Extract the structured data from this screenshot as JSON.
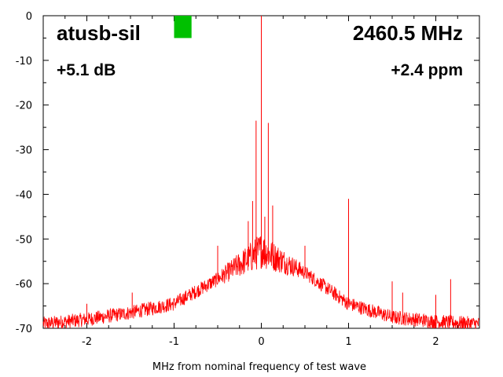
{
  "chart_data": {
    "type": "line",
    "title": "atusb-sil",
    "xlabel": "MHz from nominal frequency of test wave",
    "ylabel": "",
    "xlim": [
      -2.5,
      2.5
    ],
    "ylim": [
      -70,
      0
    ],
    "grid": false,
    "xticks": [
      -2,
      -1,
      0,
      1,
      2
    ],
    "yticks": [
      0,
      -10,
      -20,
      -30,
      -40,
      -50,
      -60,
      -70
    ],
    "xtick_labels": [
      "-2",
      "-1",
      "0",
      "1",
      "2"
    ],
    "ytick_labels": [
      "0",
      "-10",
      "-20",
      "-30",
      "-40",
      "-50",
      "-60",
      "-70"
    ],
    "line_color": "#ff0000",
    "annotations": {
      "device": "atusb-sil",
      "frequency": "2460.5 MHz",
      "power": "+5.1 dB",
      "offset": "+2.4 ppm"
    },
    "indicator": {
      "color": "#00c000",
      "x": [
        -1.0,
        -0.8
      ],
      "y": [
        0,
        -5
      ]
    },
    "envelope": {
      "description": "noise floor rising from about -69 dB at the edges to about -52 dB near 0 MHz",
      "x": [
        -2.5,
        -2.0,
        -1.5,
        -1.0,
        -0.5,
        0.0,
        0.5,
        1.0,
        1.5,
        2.0,
        2.5
      ],
      "y": [
        -69,
        -68,
        -66.5,
        -64.5,
        -59,
        -52.5,
        -57.5,
        -64.5,
        -67.5,
        -68.5,
        -69
      ]
    },
    "spurs": [
      {
        "x": -2.0,
        "y": -64.5
      },
      {
        "x": -1.48,
        "y": -62
      },
      {
        "x": -0.97,
        "y": -64
      },
      {
        "x": -0.5,
        "y": -51.5
      },
      {
        "x": -0.15,
        "y": -46
      },
      {
        "x": -0.1,
        "y": -41.5
      },
      {
        "x": -0.06,
        "y": -23.5
      },
      {
        "x": 0.0,
        "y": 0
      },
      {
        "x": 0.04,
        "y": -45
      },
      {
        "x": 0.08,
        "y": -24
      },
      {
        "x": 0.13,
        "y": -42.5
      },
      {
        "x": 0.5,
        "y": -51.5
      },
      {
        "x": 1.0,
        "y": -41
      },
      {
        "x": 1.5,
        "y": -59.5
      },
      {
        "x": 1.62,
        "y": -62
      },
      {
        "x": 2.0,
        "y": -62.5
      },
      {
        "x": 2.17,
        "y": -59
      }
    ]
  }
}
